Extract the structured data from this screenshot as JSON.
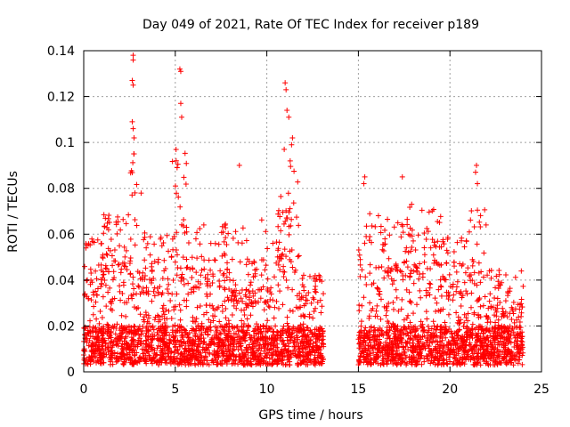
{
  "chart_data": {
    "type": "scatter",
    "title": "Day 049 of 2021, Rate Of TEC Index for receiver p189",
    "xlabel": "GPS time / hours",
    "ylabel": "ROTI / TECUs",
    "xlim": [
      0,
      25
    ],
    "ylim": [
      0,
      0.14
    ],
    "xticks": [
      0,
      5,
      10,
      15,
      20,
      25
    ],
    "yticks": [
      0,
      0.02,
      0.04,
      0.06,
      0.08,
      0.1,
      0.12,
      0.14
    ],
    "xtick_labels": [
      "0",
      "5",
      "10",
      "15",
      "20",
      "25"
    ],
    "ytick_labels": [
      "0",
      "0.02",
      "0.04",
      "0.06",
      "0.08",
      "0.1",
      "0.12",
      "0.14"
    ],
    "grid": true,
    "marker": "+",
    "color": "#ff0000",
    "data_gap_hours": [
      13.1,
      15.0
    ],
    "series": [
      {
        "name": "ROTI",
        "notable_points": [
          {
            "x": 2.7,
            "y": 0.138
          },
          {
            "x": 2.7,
            "y": 0.136
          },
          {
            "x": 2.65,
            "y": 0.127
          },
          {
            "x": 2.7,
            "y": 0.125
          },
          {
            "x": 2.65,
            "y": 0.109
          },
          {
            "x": 2.7,
            "y": 0.106
          },
          {
            "x": 2.75,
            "y": 0.102
          },
          {
            "x": 2.75,
            "y": 0.095
          },
          {
            "x": 2.8,
            "y": 0.078
          },
          {
            "x": 5.25,
            "y": 0.132
          },
          {
            "x": 5.3,
            "y": 0.131
          },
          {
            "x": 5.3,
            "y": 0.117
          },
          {
            "x": 5.35,
            "y": 0.111
          },
          {
            "x": 5.05,
            "y": 0.092
          },
          {
            "x": 5.1,
            "y": 0.089
          },
          {
            "x": 8.5,
            "y": 0.09
          },
          {
            "x": 11.0,
            "y": 0.126
          },
          {
            "x": 11.05,
            "y": 0.123
          },
          {
            "x": 11.1,
            "y": 0.114
          },
          {
            "x": 11.2,
            "y": 0.111
          },
          {
            "x": 11.4,
            "y": 0.102
          },
          {
            "x": 11.35,
            "y": 0.099
          },
          {
            "x": 10.95,
            "y": 0.097
          },
          {
            "x": 15.35,
            "y": 0.085
          },
          {
            "x": 15.3,
            "y": 0.082
          },
          {
            "x": 17.4,
            "y": 0.085
          },
          {
            "x": 21.45,
            "y": 0.09
          },
          {
            "x": 21.4,
            "y": 0.087
          },
          {
            "x": 21.5,
            "y": 0.082
          }
        ],
        "dense_segments": [
          {
            "x_range": [
              0.0,
              1.0
            ],
            "typical_max": 0.055,
            "peak": 0.062
          },
          {
            "x_range": [
              1.0,
              2.5
            ],
            "typical_max": 0.065,
            "peak": 0.074
          },
          {
            "x_range": [
              2.5,
              3.2
            ],
            "typical_max": 0.06,
            "peak": 0.138
          },
          {
            "x_range": [
              3.2,
              4.8
            ],
            "typical_max": 0.055,
            "peak": 0.07
          },
          {
            "x_range": [
              4.8,
              5.8
            ],
            "typical_max": 0.075,
            "peak": 0.132
          },
          {
            "x_range": [
              5.8,
              8.0
            ],
            "typical_max": 0.06,
            "peak": 0.072
          },
          {
            "x_range": [
              8.0,
              10.5
            ],
            "typical_max": 0.05,
            "peak": 0.09
          },
          {
            "x_range": [
              10.5,
              11.8
            ],
            "typical_max": 0.07,
            "peak": 0.126
          },
          {
            "x_range": [
              11.8,
              13.1
            ],
            "typical_max": 0.04,
            "peak": 0.045
          },
          {
            "x_range": [
              15.0,
              17.0
            ],
            "typical_max": 0.06,
            "peak": 0.085
          },
          {
            "x_range": [
              17.0,
              19.5
            ],
            "typical_max": 0.065,
            "peak": 0.085
          },
          {
            "x_range": [
              19.5,
              21.0
            ],
            "typical_max": 0.055,
            "peak": 0.065
          },
          {
            "x_range": [
              21.0,
              22.0
            ],
            "typical_max": 0.06,
            "peak": 0.09
          },
          {
            "x_range": [
              22.0,
              24.0
            ],
            "typical_max": 0.04,
            "peak": 0.052
          }
        ],
        "baseline_range": [
          0.003,
          0.02
        ]
      }
    ]
  }
}
